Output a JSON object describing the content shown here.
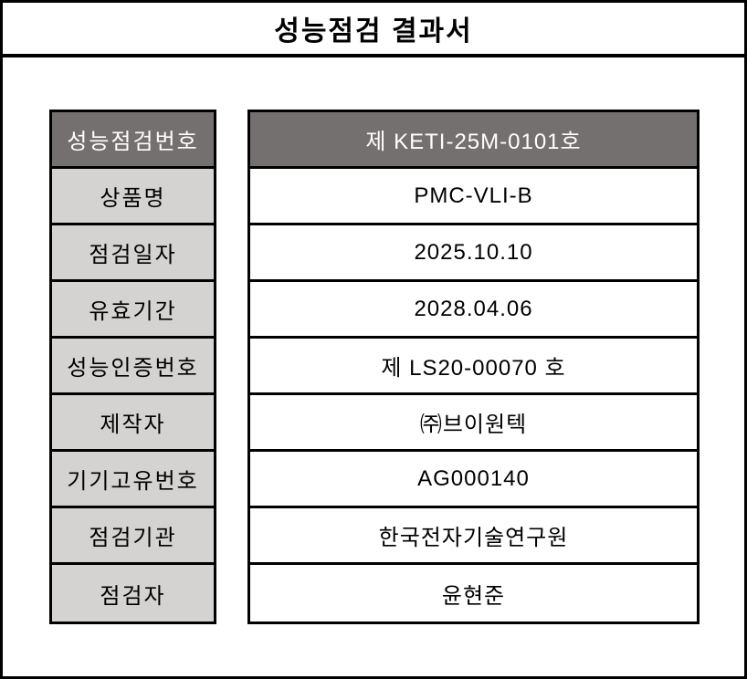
{
  "title": "성능점검 결과서",
  "colors": {
    "border": "#000000",
    "header_bg": "#757070",
    "header_text": "#ffffff",
    "label_bg": "#d5d2d2",
    "page_bg": "#ffffff"
  },
  "table": {
    "rows": [
      {
        "label": "성능점검번호",
        "value": "제 KETI-25M-0101호"
      },
      {
        "label": "상품명",
        "value": "PMC-VLI-B"
      },
      {
        "label": "점검일자",
        "value": "2025.10.10"
      },
      {
        "label": "유효기간",
        "value": "2028.04.06"
      },
      {
        "label": "성능인증번호",
        "value": "제 LS20-00070 호"
      },
      {
        "label": "제작자",
        "value": "㈜브이원텍"
      },
      {
        "label": "기기고유번호",
        "value": "AG000140"
      },
      {
        "label": "점검기관",
        "value": "한국전자기술연구원"
      },
      {
        "label": "점검자",
        "value": "윤현준"
      }
    ]
  }
}
